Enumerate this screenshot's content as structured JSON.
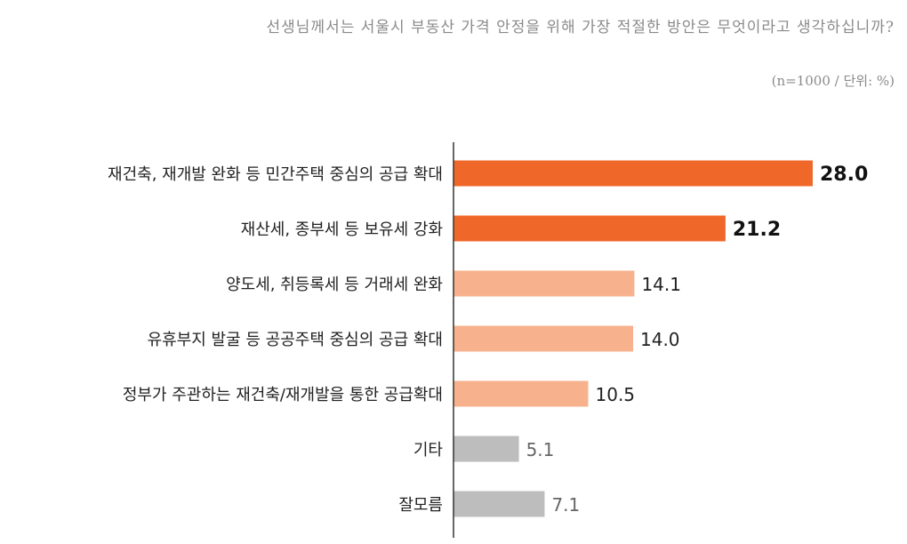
{
  "question": "선생님께서는 서울시 부동산 가격 안정을 위해 가장 적절한 방안은 무엇이라고 생각하십니까?",
  "sample_note": "(n=1000 / 단위: %)",
  "colors": {
    "highlight": "#f0672a",
    "secondary": "#f7b28d",
    "muted": "#bdbdbd",
    "axis": "#333333"
  },
  "chart_data": {
    "type": "bar",
    "orientation": "horizontal",
    "categories": [
      "재건축, 재개발 완화 등 민간주택 중심의 공급 확대",
      "재산세, 종부세 등 보유세 강화",
      "양도세, 취등록세 등 거래세 완화",
      "유휴부지 발굴 등 공공주택 중심의 공급 확대",
      "정부가 주관하는 재건축/재개발을 통한 공급확대",
      "기타",
      "잘모름"
    ],
    "values": [
      28.0,
      21.2,
      14.1,
      14.0,
      10.5,
      5.1,
      7.1
    ],
    "value_labels": [
      "28.0",
      "21.2",
      "14.1",
      "14.0",
      "10.5",
      "5.1",
      "7.1"
    ],
    "bar_color_groups": [
      "highlight",
      "highlight",
      "secondary",
      "secondary",
      "secondary",
      "muted",
      "muted"
    ],
    "xlim": [
      0,
      28.0
    ],
    "grid": false,
    "legend": "none"
  }
}
